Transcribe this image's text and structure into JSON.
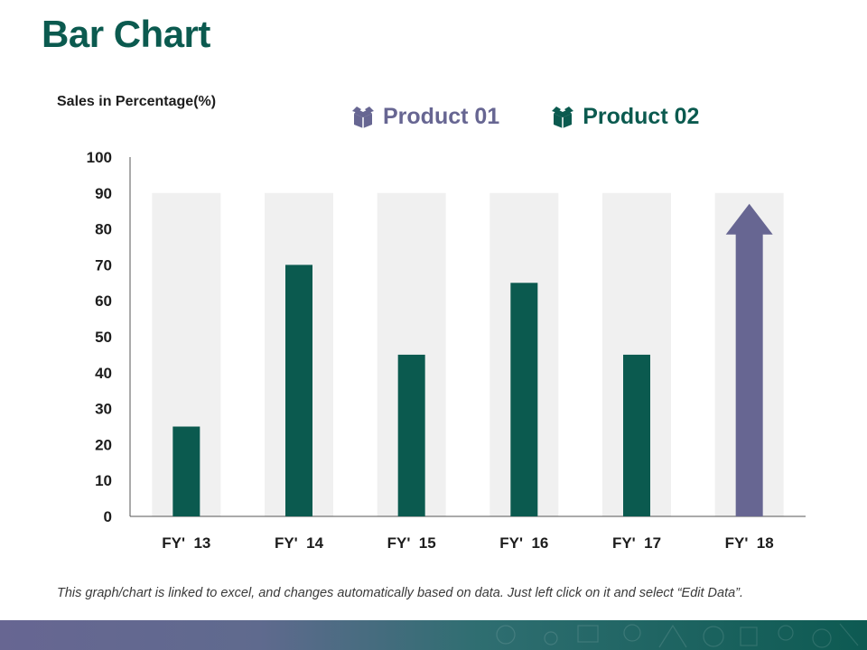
{
  "page": {
    "title": "Bar Chart",
    "footnote": "This graph/chart is linked to excel, and changes automatically based on data. Just left click on it and select “Edit Data”."
  },
  "legend": [
    {
      "label": "Product 01",
      "color": "#676692",
      "icon": "box-icon"
    },
    {
      "label": "Product 02",
      "color": "#0b5a4f",
      "icon": "box-icon"
    }
  ],
  "colors": {
    "product_01": "#676692",
    "product_02": "#0b5a4f",
    "background_bar": "#f0f0f0",
    "title": "#0b5a4f"
  },
  "chart_data": {
    "type": "bar",
    "title": "",
    "ylabel": "Sales in Percentage(%)",
    "xlabel": "",
    "ylim": [
      0,
      100
    ],
    "yticks": [
      0,
      10,
      20,
      30,
      40,
      50,
      60,
      70,
      80,
      90,
      100
    ],
    "categories": [
      "FY'  13",
      "FY'  14",
      "FY'  15",
      "FY'  16",
      "FY'  17",
      "FY'  18"
    ],
    "series": [
      {
        "name": "Product 01",
        "values": [
          90,
          90,
          90,
          90,
          90,
          90
        ],
        "style": "background"
      },
      {
        "name": "Product 02",
        "values": [
          25,
          70,
          45,
          65,
          45,
          null
        ]
      }
    ],
    "annotations": [
      {
        "type": "up-arrow",
        "category": "FY'  18",
        "value": 87,
        "color": "#676692"
      }
    ]
  }
}
